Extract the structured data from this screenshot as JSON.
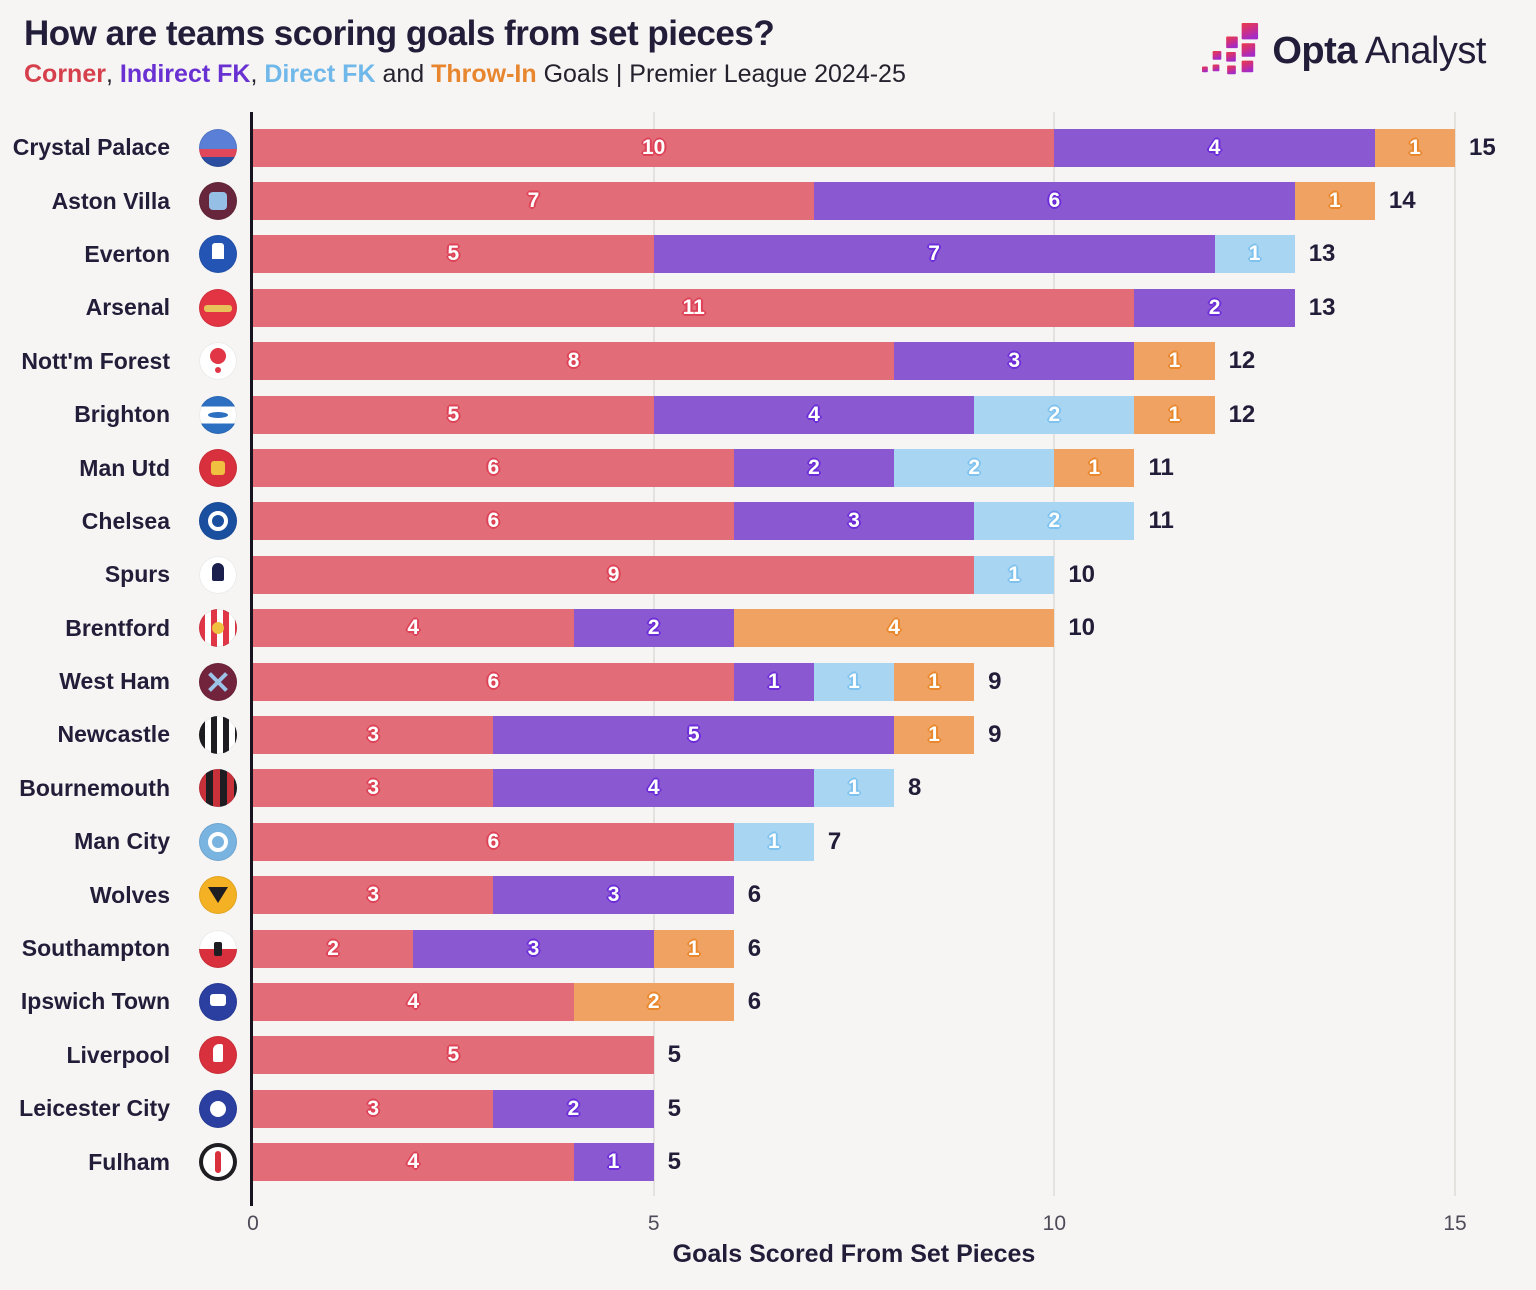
{
  "header": {
    "title": "How are teams scoring goals from set pieces?",
    "subtitle": {
      "corner": "Corner",
      "comma1": ", ",
      "indirect": "Indirect FK",
      "comma2": ", ",
      "direct": "Direct FK",
      "and": " and ",
      "throw_in": "Throw-In",
      "rest": " Goals | Premier League 2024-25"
    },
    "logo": {
      "word1": "Opta",
      "word2": "Analyst"
    }
  },
  "legend_colors": {
    "corner_text": "#d6404c",
    "indirect_text": "#6930d2",
    "direct_text": "#70b8ea",
    "throw_in_text": "#e8862f"
  },
  "chart_data": {
    "type": "bar",
    "orientation": "horizontal",
    "stacked": true,
    "title": "How are teams scoring goals from set pieces?",
    "subtitle": "Corner, Indirect FK, Direct FK and Throw-In Goals | Premier League 2024-25",
    "xlabel": "Goals Scored From Set Pieces",
    "xlim": [
      0,
      15
    ],
    "xticks": [
      0,
      5,
      10,
      15
    ],
    "grid": "vertical-light",
    "series_names": [
      "Corner",
      "Indirect FK",
      "Direct FK",
      "Throw-In"
    ],
    "series_keys": [
      "corner",
      "indirect_fk",
      "direct_fk",
      "throw_in"
    ],
    "series_colors": {
      "corner": "#e26c78",
      "indirect_fk": "#8a59d2",
      "direct_fk": "#a8d5f2",
      "throw_in": "#f0a262"
    },
    "teams": [
      {
        "id": "crystal-palace",
        "name": "Crystal Palace",
        "corner": 10,
        "indirect_fk": 4,
        "direct_fk": 0,
        "throw_in": 1,
        "total": 15
      },
      {
        "id": "aston-villa",
        "name": "Aston Villa",
        "corner": 7,
        "indirect_fk": 6,
        "direct_fk": 0,
        "throw_in": 1,
        "total": 14
      },
      {
        "id": "everton",
        "name": "Everton",
        "corner": 5,
        "indirect_fk": 7,
        "direct_fk": 1,
        "throw_in": 0,
        "total": 13
      },
      {
        "id": "arsenal",
        "name": "Arsenal",
        "corner": 11,
        "indirect_fk": 2,
        "direct_fk": 0,
        "throw_in": 0,
        "total": 13
      },
      {
        "id": "nottm-forest",
        "name": "Nott'm Forest",
        "corner": 8,
        "indirect_fk": 3,
        "direct_fk": 0,
        "throw_in": 1,
        "total": 12
      },
      {
        "id": "brighton",
        "name": "Brighton",
        "corner": 5,
        "indirect_fk": 4,
        "direct_fk": 2,
        "throw_in": 1,
        "total": 12
      },
      {
        "id": "man-utd",
        "name": "Man Utd",
        "corner": 6,
        "indirect_fk": 2,
        "direct_fk": 2,
        "throw_in": 1,
        "total": 11
      },
      {
        "id": "chelsea",
        "name": "Chelsea",
        "corner": 6,
        "indirect_fk": 3,
        "direct_fk": 2,
        "throw_in": 0,
        "total": 11
      },
      {
        "id": "spurs",
        "name": "Spurs",
        "corner": 9,
        "indirect_fk": 0,
        "direct_fk": 1,
        "throw_in": 0,
        "total": 10
      },
      {
        "id": "brentford",
        "name": "Brentford",
        "corner": 4,
        "indirect_fk": 2,
        "direct_fk": 0,
        "throw_in": 4,
        "total": 10
      },
      {
        "id": "west-ham",
        "name": "West Ham",
        "corner": 6,
        "indirect_fk": 1,
        "direct_fk": 1,
        "throw_in": 1,
        "total": 9
      },
      {
        "id": "newcastle",
        "name": "Newcastle",
        "corner": 3,
        "indirect_fk": 5,
        "direct_fk": 0,
        "throw_in": 1,
        "total": 9
      },
      {
        "id": "bournemouth",
        "name": "Bournemouth",
        "corner": 3,
        "indirect_fk": 4,
        "direct_fk": 1,
        "throw_in": 0,
        "total": 8
      },
      {
        "id": "man-city",
        "name": "Man City",
        "corner": 6,
        "indirect_fk": 0,
        "direct_fk": 1,
        "throw_in": 0,
        "total": 7
      },
      {
        "id": "wolves",
        "name": "Wolves",
        "corner": 3,
        "indirect_fk": 3,
        "direct_fk": 0,
        "throw_in": 0,
        "total": 6
      },
      {
        "id": "southampton",
        "name": "Southampton",
        "corner": 2,
        "indirect_fk": 3,
        "direct_fk": 0,
        "throw_in": 1,
        "total": 6
      },
      {
        "id": "ipswich-town",
        "name": "Ipswich Town",
        "corner": 4,
        "indirect_fk": 0,
        "direct_fk": 0,
        "throw_in": 2,
        "total": 6
      },
      {
        "id": "liverpool",
        "name": "Liverpool",
        "corner": 5,
        "indirect_fk": 0,
        "direct_fk": 0,
        "throw_in": 0,
        "total": 5
      },
      {
        "id": "leicester-city",
        "name": "Leicester City",
        "corner": 3,
        "indirect_fk": 2,
        "direct_fk": 0,
        "throw_in": 0,
        "total": 5
      },
      {
        "id": "fulham",
        "name": "Fulham",
        "corner": 4,
        "indirect_fk": 1,
        "direct_fk": 0,
        "throw_in": 0,
        "total": 5
      }
    ]
  }
}
